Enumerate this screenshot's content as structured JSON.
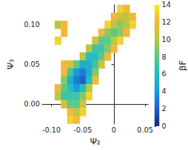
{
  "chart_data": {
    "type": "heatmap",
    "x_label": "Ψ₂",
    "y_label": "Ψ₃",
    "xlim": [
      -0.115,
      0.055
    ],
    "ylim": [
      -0.025,
      0.125
    ],
    "xticks": [
      {
        "value": -0.1,
        "label": "-0.10"
      },
      -0.05,
      0,
      0.05
    ],
    "yticks": [
      {
        "value": 0,
        "label": "0.00"
      },
      0.05,
      {
        "value": 0.1,
        "label": "0.10"
      }
    ],
    "grid": false,
    "cells": [
      [
        0.01,
        0.12,
        13
      ],
      [
        0.02,
        0.12,
        12
      ],
      [
        0.0,
        0.11,
        12
      ],
      [
        0.01,
        0.11,
        11
      ],
      [
        0.02,
        0.11,
        10
      ],
      [
        0.03,
        0.11,
        12
      ],
      [
        -0.09,
        0.1,
        10
      ],
      [
        -0.08,
        0.1,
        12
      ],
      [
        -0.01,
        0.1,
        13
      ],
      [
        0.0,
        0.1,
        10
      ],
      [
        0.01,
        0.1,
        9
      ],
      [
        0.02,
        0.1,
        10
      ],
      [
        0.03,
        0.1,
        13
      ],
      [
        -0.08,
        0.09,
        12
      ],
      [
        -0.02,
        0.09,
        12
      ],
      [
        -0.01,
        0.09,
        9
      ],
      [
        0.0,
        0.09,
        8
      ],
      [
        0.01,
        0.09,
        9
      ],
      [
        0.02,
        0.09,
        12
      ],
      [
        -0.09,
        0.08,
        13
      ],
      [
        -0.03,
        0.08,
        11
      ],
      [
        -0.02,
        0.08,
        8
      ],
      [
        -0.01,
        0.08,
        8
      ],
      [
        0.0,
        0.08,
        10
      ],
      [
        0.01,
        0.08,
        13
      ],
      [
        -0.04,
        0.07,
        10
      ],
      [
        -0.03,
        0.07,
        7
      ],
      [
        -0.02,
        0.07,
        7
      ],
      [
        -0.01,
        0.07,
        9
      ],
      [
        0.0,
        0.07,
        12
      ],
      [
        -0.05,
        0.06,
        10
      ],
      [
        -0.04,
        0.06,
        6
      ],
      [
        -0.03,
        0.06,
        6
      ],
      [
        -0.02,
        0.06,
        8
      ],
      [
        -0.01,
        0.06,
        12
      ],
      [
        -0.08,
        0.05,
        12
      ],
      [
        -0.07,
        0.05,
        11
      ],
      [
        -0.06,
        0.05,
        8
      ],
      [
        -0.05,
        0.05,
        5
      ],
      [
        -0.04,
        0.05,
        5
      ],
      [
        -0.03,
        0.05,
        7
      ],
      [
        -0.02,
        0.05,
        11
      ],
      [
        -0.08,
        0.04,
        12
      ],
      [
        -0.07,
        0.04,
        7
      ],
      [
        -0.06,
        0.04,
        4
      ],
      [
        -0.05,
        0.04,
        3
      ],
      [
        -0.04,
        0.04,
        5
      ],
      [
        -0.03,
        0.04,
        9
      ],
      [
        -0.08,
        0.03,
        9
      ],
      [
        -0.07,
        0.03,
        5
      ],
      [
        -0.06,
        0.03,
        3
      ],
      [
        -0.05,
        0.03,
        2
      ],
      [
        -0.04,
        0.03,
        6
      ],
      [
        -0.03,
        0.03,
        12
      ],
      [
        -0.09,
        0.02,
        12
      ],
      [
        -0.08,
        0.02,
        8
      ],
      [
        -0.07,
        0.02,
        6
      ],
      [
        -0.06,
        0.02,
        4
      ],
      [
        -0.05,
        0.02,
        6
      ],
      [
        -0.04,
        0.02,
        10
      ],
      [
        -0.09,
        0.01,
        10
      ],
      [
        -0.08,
        0.01,
        7
      ],
      [
        -0.07,
        0.01,
        7
      ],
      [
        -0.06,
        0.01,
        7
      ],
      [
        -0.05,
        0.01,
        9
      ],
      [
        -0.04,
        0.01,
        13
      ],
      [
        -0.08,
        0.0,
        11
      ],
      [
        -0.07,
        0.0,
        8
      ],
      [
        -0.06,
        0.0,
        8
      ],
      [
        -0.05,
        0.0,
        11
      ],
      [
        -0.07,
        -0.01,
        12
      ],
      [
        -0.06,
        -0.01,
        10
      ],
      [
        -0.05,
        -0.01,
        13
      ],
      [
        -0.07,
        -0.02,
        13
      ],
      [
        -0.06,
        -0.02,
        12
      ]
    ],
    "colorbar": {
      "label": "βF",
      "range": [
        0,
        14
      ],
      "ticks": [
        0,
        2,
        4,
        6,
        8,
        10,
        12,
        14
      ]
    }
  }
}
